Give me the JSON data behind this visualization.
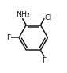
{
  "bg_color": "#ffffff",
  "ring_color": "#1a1a1a",
  "line_width": 1.1,
  "label_NH2": "NH₂",
  "label_Cl": "Cl",
  "label_F1": "F",
  "label_F2": "F",
  "font_size": 6.8,
  "fig_width": 0.85,
  "fig_height": 0.92,
  "dpi": 100
}
